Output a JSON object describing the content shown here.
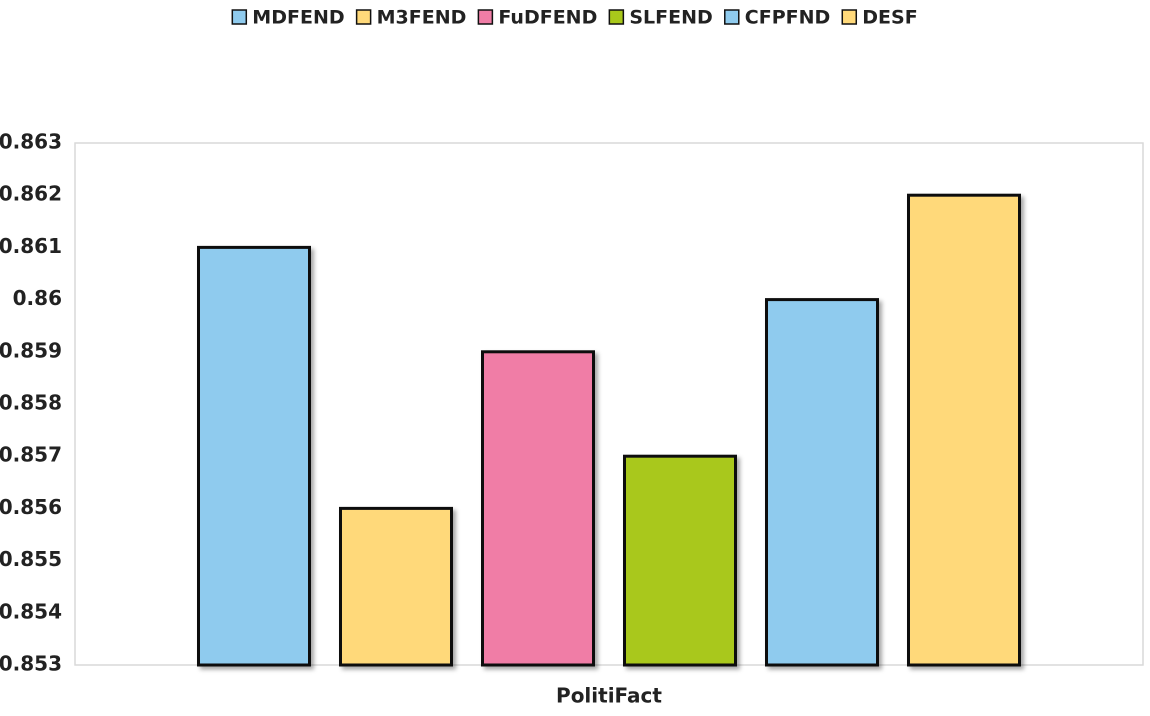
{
  "chart_data": {
    "type": "bar",
    "categories": [
      "PolitiFact"
    ],
    "series": [
      {
        "name": "MDFEND",
        "color": "#8fcbee",
        "values": [
          0.861
        ]
      },
      {
        "name": "M3FEND",
        "color": "#ffd97a",
        "values": [
          0.856
        ]
      },
      {
        "name": "FuDFEND",
        "color": "#f07da6",
        "values": [
          0.859
        ]
      },
      {
        "name": "SLFEND",
        "color": "#a9c81b",
        "values": [
          0.857
        ]
      },
      {
        "name": "CFPFND",
        "color": "#8fcbee",
        "values": [
          0.86
        ]
      },
      {
        "name": "DESF",
        "color": "#ffd97a",
        "values": [
          0.862
        ]
      }
    ],
    "ylim": [
      0.853,
      0.863
    ],
    "yticks": [
      0.853,
      0.854,
      0.855,
      0.856,
      0.857,
      0.858,
      0.859,
      0.86,
      0.861,
      0.862,
      0.863
    ],
    "grid": false,
    "legend": "top"
  }
}
